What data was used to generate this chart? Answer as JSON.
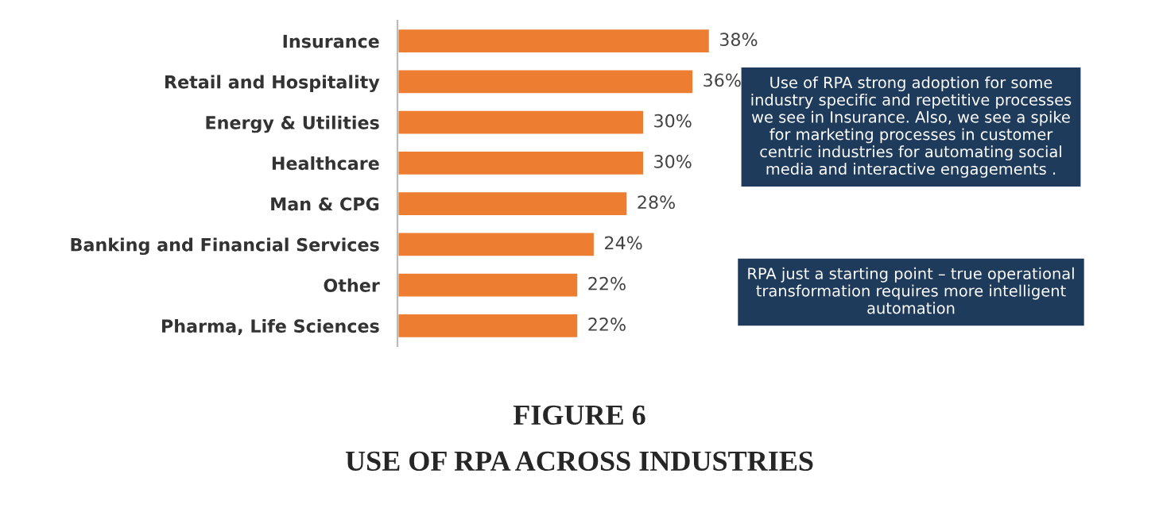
{
  "chart_data": {
    "type": "bar",
    "orientation": "horizontal",
    "title": "FIGURE 6",
    "subtitle": "USE OF RPA ACROSS INDUSTRIES",
    "categories": [
      "Insurance",
      "Retail and Hospitality",
      "Energy & Utilities",
      "Healthcare",
      "Man & CPG",
      "Banking and Financial Services",
      "Other",
      "Pharma, Life Sciences"
    ],
    "values": [
      38,
      36,
      30,
      30,
      28,
      24,
      22,
      22
    ],
    "value_labels": [
      "38%",
      "36%",
      "30%",
      "30%",
      "28%",
      "24%",
      "22%",
      "22%"
    ],
    "color": "#ed7d31",
    "annotations": [
      "Use of RPA strong adoption for some industry specific and repetitive processes we see in Insurance. Also, we see a spike for marketing processes in customer centric industries for automating social media and interactive engagements .",
      "RPA just a starting point – true operational transformation requires more intelligent automation"
    ],
    "grid": false,
    "legend": false
  }
}
